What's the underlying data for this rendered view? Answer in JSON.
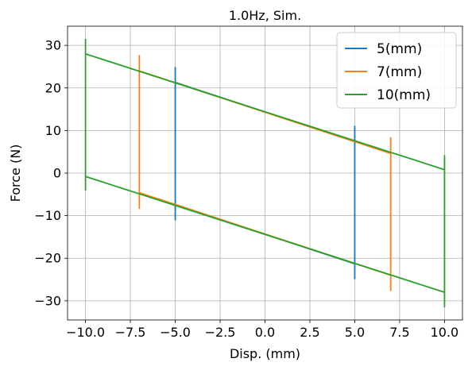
{
  "chart_data": {
    "type": "line",
    "title": "1.0Hz, Sim.",
    "xlabel": "Disp. (mm)",
    "ylabel": "Force (N)",
    "xlim": [
      -11,
      11
    ],
    "ylim": [
      -34.5,
      34.5
    ],
    "xticks": [
      -10.0,
      -7.5,
      -5.0,
      -2.5,
      0.0,
      2.5,
      5.0,
      7.5,
      10.0
    ],
    "xtick_labels": [
      "−10.0",
      "−7.5",
      "−5.0",
      "−2.5",
      "0.0",
      "2.5",
      "5.0",
      "7.5",
      "10.0"
    ],
    "yticks": [
      -30,
      -20,
      -10,
      0,
      10,
      20,
      30
    ],
    "ytick_labels": [
      "−30",
      "−20",
      "−10",
      "0",
      "10",
      "20",
      "30"
    ],
    "grid": true,
    "legend_position": "top-right",
    "series": [
      {
        "name": "5(mm)",
        "color": "#1f77b4",
        "points": [
          [
            -5,
            21.5
          ],
          [
            -5,
            24.8
          ],
          [
            -5,
            21.3
          ],
          [
            5,
            7.4
          ],
          [
            5,
            11
          ],
          [
            5,
            7.6
          ],
          [
            5,
            -21.5
          ],
          [
            5,
            -24.8
          ],
          [
            5,
            -21.3
          ],
          [
            -5,
            -7.4
          ],
          [
            -5,
            -11
          ],
          [
            -5,
            -7.6
          ],
          [
            -5,
            21.5
          ]
        ]
      },
      {
        "name": "7(mm)",
        "color": "#ff7f0e",
        "points": [
          [
            -7,
            24.2
          ],
          [
            -7,
            27.6
          ],
          [
            -7,
            24.0
          ],
          [
            7,
            4.6
          ],
          [
            7,
            8.3
          ],
          [
            7,
            4.8
          ],
          [
            7,
            -24.2
          ],
          [
            7,
            -27.6
          ],
          [
            7,
            -24.0
          ],
          [
            -7,
            -4.6
          ],
          [
            -7,
            -8.3
          ],
          [
            -7,
            -4.8
          ],
          [
            -7,
            24.2
          ]
        ]
      },
      {
        "name": "10(mm)",
        "color": "#2ca02c",
        "points": [
          [
            -10,
            28.2
          ],
          [
            -10,
            31.4
          ],
          [
            -10,
            28.0
          ],
          [
            10,
            0.8
          ],
          [
            10,
            4.1
          ],
          [
            10,
            0.6
          ],
          [
            10,
            -28.2
          ],
          [
            10,
            -31.4
          ],
          [
            10,
            -28.0
          ],
          [
            -10,
            -0.8
          ],
          [
            -10,
            -4.0
          ],
          [
            -10,
            -0.6
          ],
          [
            -10,
            28.2
          ]
        ]
      }
    ]
  }
}
